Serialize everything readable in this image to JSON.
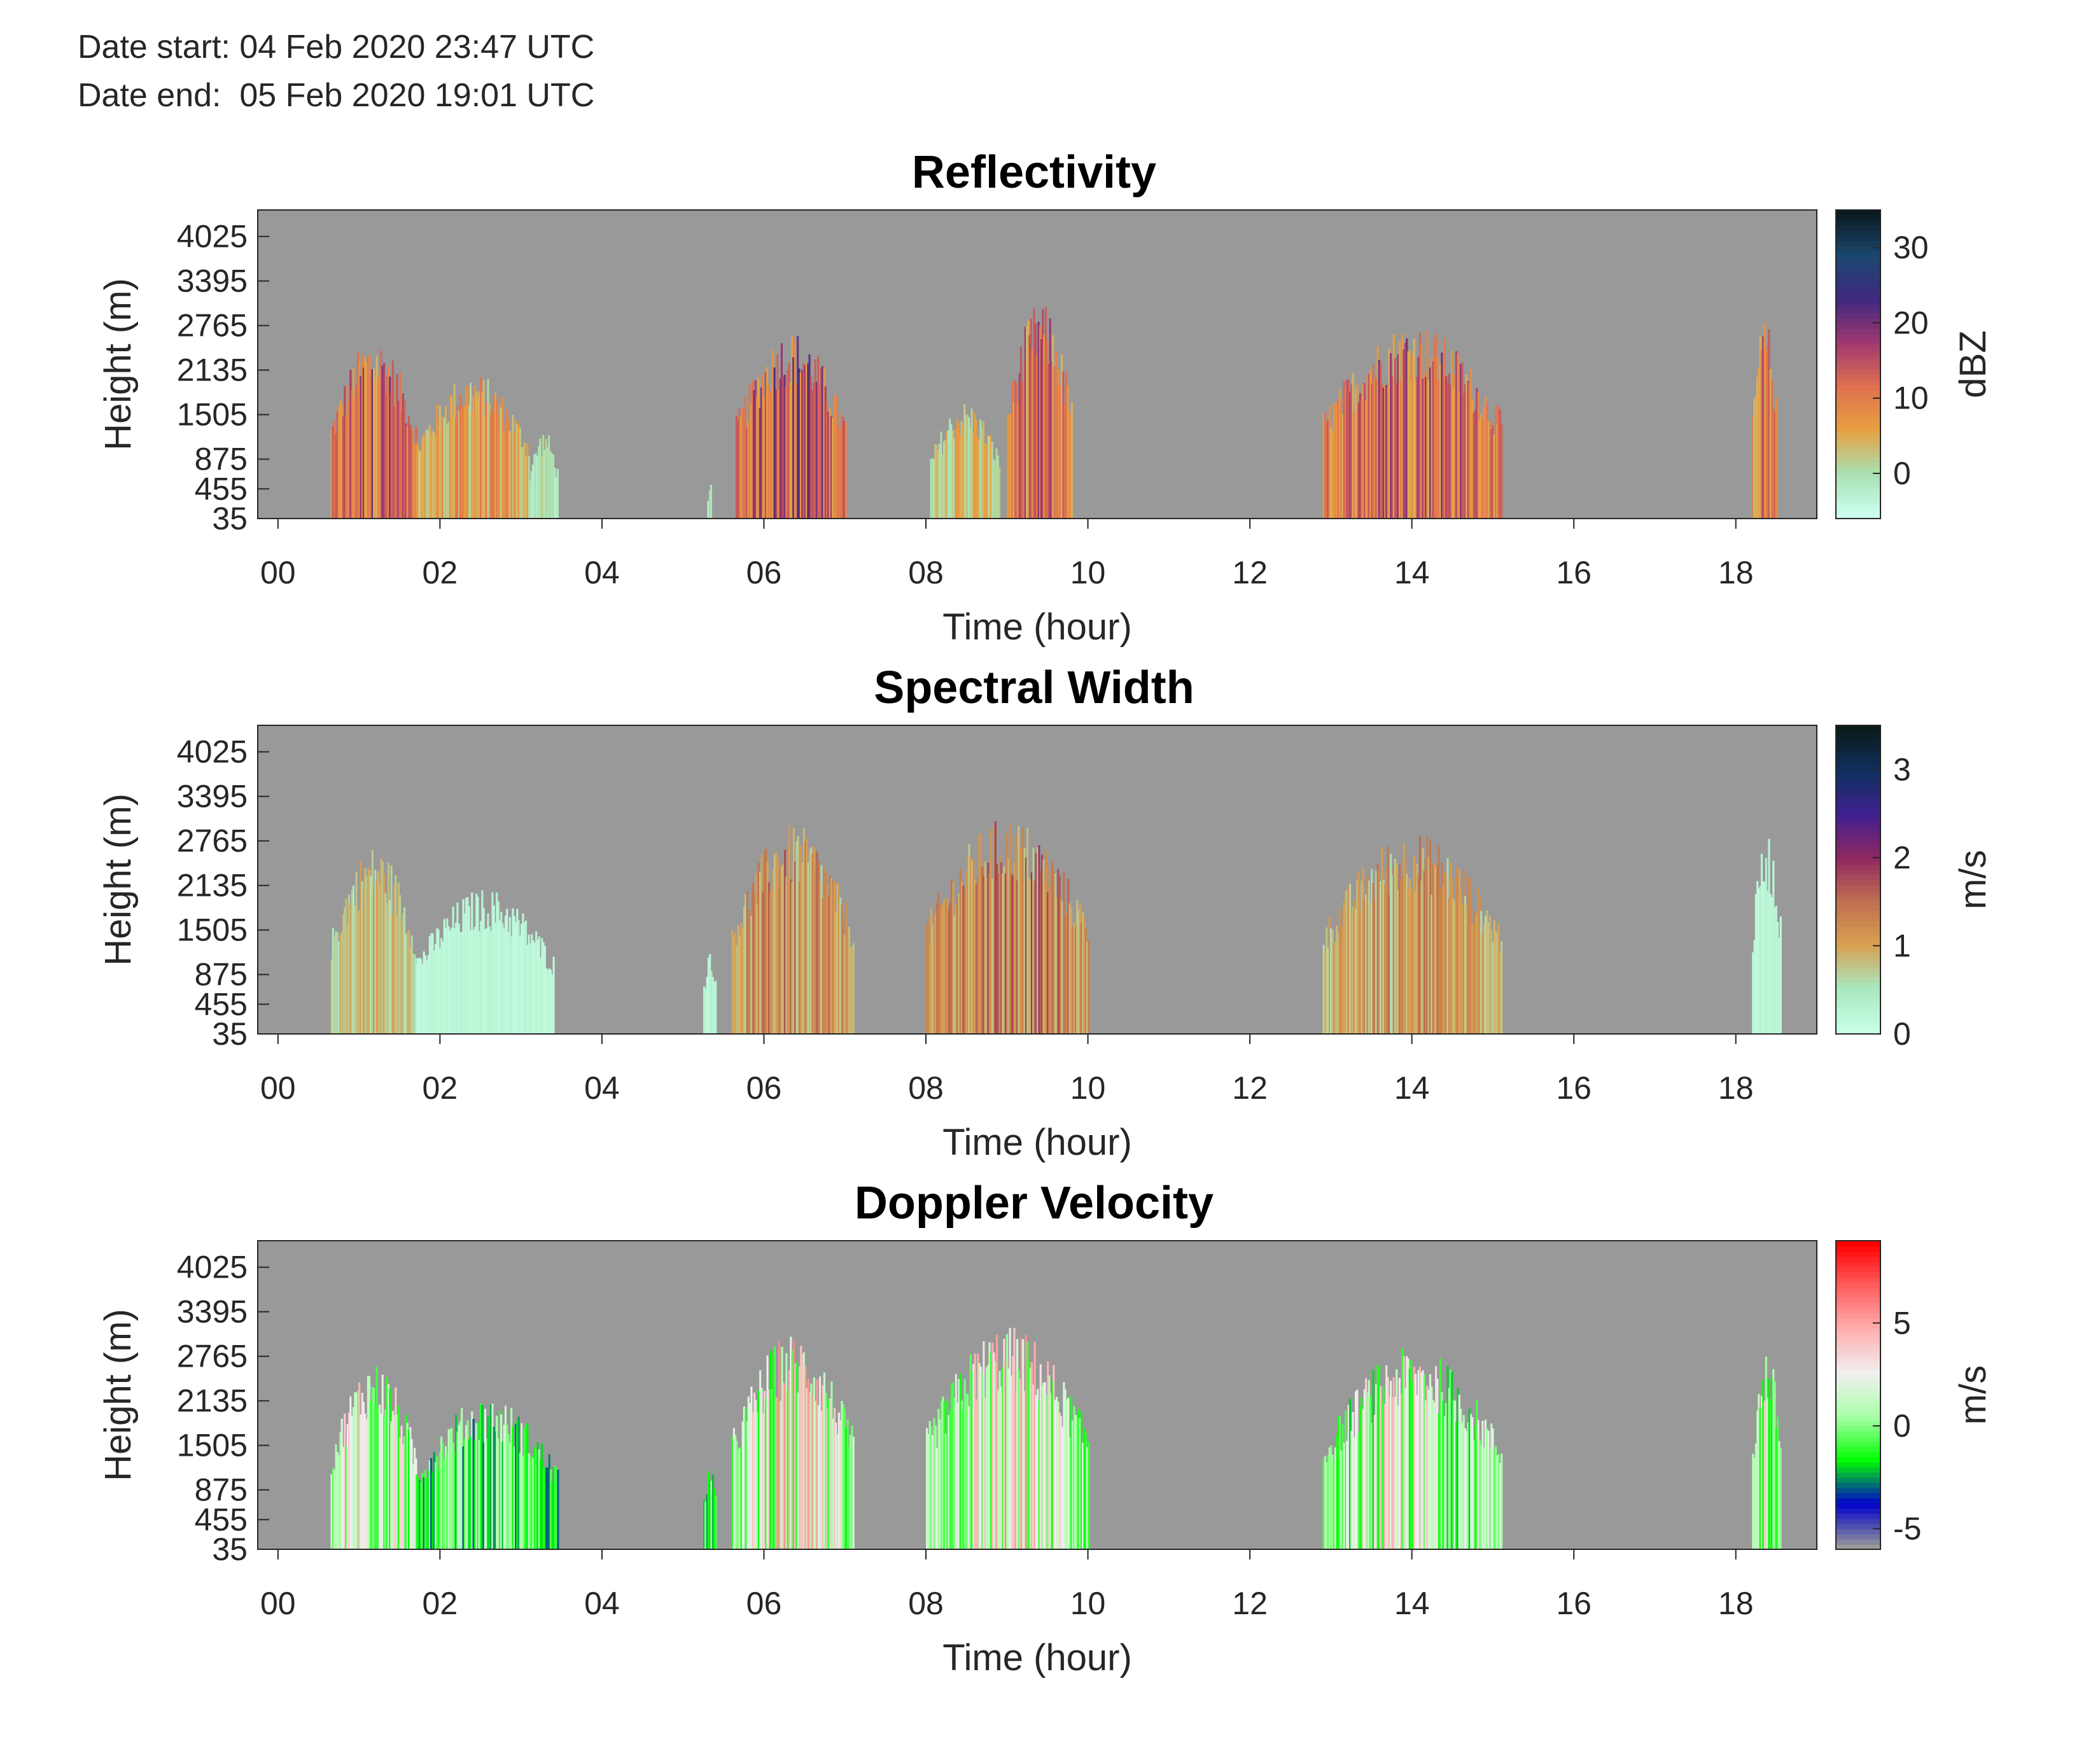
{
  "header": {
    "date_start": "Date start: 04 Feb 2020 23:47 UTC",
    "date_end": "Date end:  05 Feb 2020 19:01 UTC"
  },
  "colors": {
    "background": "#999999",
    "reflectivity_cmap": [
      "#ccfff0",
      "#a8e0b0",
      "#e8a040",
      "#e07050",
      "#a03870",
      "#402880",
      "#1a4870",
      "#0a1a20"
    ],
    "width_cmap": [
      "#c8ffe6",
      "#a8e8c0",
      "#d8a050",
      "#c07050",
      "#902860",
      "#402090",
      "#103060",
      "#0a1a18"
    ],
    "velocity_cmap": [
      "#999999",
      "#0000cc",
      "#00ff00",
      "#a8ffa8",
      "#f0f0f0",
      "#ffb0b0",
      "#ff6060",
      "#ff0000"
    ]
  },
  "chart_data": [
    {
      "type": "heatmap",
      "title": "Reflectivity",
      "xlabel": "Time (hour)",
      "ylabel": "Height (m)",
      "xticks": [
        "00",
        "02",
        "04",
        "06",
        "08",
        "10",
        "12",
        "14",
        "16",
        "18"
      ],
      "yticks": [
        "35",
        "455",
        "875",
        "1505",
        "2135",
        "2765",
        "3395",
        "4025"
      ],
      "xlim": [
        -0.25,
        19.0
      ],
      "ylim": [
        35,
        4400
      ],
      "colorbar": {
        "label": "dBZ",
        "ticks": [
          "0",
          "10",
          "20",
          "30"
        ],
        "clim": [
          -6,
          35
        ]
      },
      "echoes": [
        {
          "t0": 0.65,
          "t1": 1.7,
          "top": 2600,
          "max": 22
        },
        {
          "t0": 1.7,
          "t1": 3.1,
          "top": 2100,
          "max": 12
        },
        {
          "t0": 3.1,
          "t1": 3.45,
          "top": 1300,
          "max": 2
        },
        {
          "t0": 5.3,
          "t1": 5.35,
          "top": 600,
          "max": 1
        },
        {
          "t0": 5.65,
          "t1": 7.0,
          "top": 2700,
          "max": 25
        },
        {
          "t0": 8.05,
          "t1": 8.9,
          "top": 1700,
          "max": 8
        },
        {
          "t0": 9.0,
          "t1": 9.8,
          "top": 3100,
          "max": 20
        },
        {
          "t0": 12.9,
          "t1": 15.1,
          "top": 2800,
          "max": 22
        },
        {
          "t0": 18.2,
          "t1": 18.5,
          "top": 2900,
          "max": 18
        }
      ]
    },
    {
      "type": "heatmap",
      "title": "Spectral Width",
      "xlabel": "Time (hour)",
      "ylabel": "Height (m)",
      "xticks": [
        "00",
        "02",
        "04",
        "06",
        "08",
        "10",
        "12",
        "14",
        "16",
        "18"
      ],
      "yticks": [
        "35",
        "455",
        "875",
        "1505",
        "2135",
        "2765",
        "3395",
        "4025"
      ],
      "xlim": [
        -0.25,
        19.0
      ],
      "ylim": [
        35,
        4400
      ],
      "colorbar": {
        "label": "m/s",
        "ticks": [
          "0",
          "1",
          "2",
          "3"
        ],
        "clim": [
          0,
          3.5
        ]
      },
      "echoes": [
        {
          "t0": 0.65,
          "t1": 1.7,
          "top": 2700,
          "max": 1.2
        },
        {
          "t0": 1.7,
          "t1": 3.4,
          "top": 2100,
          "max": 0.3
        },
        {
          "t0": 5.25,
          "t1": 5.4,
          "top": 1300,
          "max": 0.4
        },
        {
          "t0": 5.6,
          "t1": 7.1,
          "top": 3000,
          "max": 1.8
        },
        {
          "t0": 8.0,
          "t1": 10.0,
          "top": 3100,
          "max": 2.0
        },
        {
          "t0": 12.9,
          "t1": 15.1,
          "top": 2900,
          "max": 1.6
        },
        {
          "t0": 18.2,
          "t1": 18.55,
          "top": 2900,
          "max": 0.3
        }
      ]
    },
    {
      "type": "heatmap",
      "title": "Doppler Velocity",
      "xlabel": "Time (hour)",
      "ylabel": "Height (m)",
      "xticks": [
        "00",
        "02",
        "04",
        "06",
        "08",
        "10",
        "12",
        "14",
        "16",
        "18"
      ],
      "yticks": [
        "35",
        "455",
        "875",
        "1505",
        "2135",
        "2765",
        "3395",
        "4025"
      ],
      "xlim": [
        -0.25,
        19.0
      ],
      "ylim": [
        35,
        4400
      ],
      "colorbar": {
        "label": "m/s",
        "ticks": [
          "5",
          "0",
          "-5"
        ],
        "clim": [
          -6,
          9
        ]
      },
      "echoes": [
        {
          "t0": 0.65,
          "t1": 1.7,
          "top": 2700,
          "max": 6
        },
        {
          "t0": 1.7,
          "t1": 3.45,
          "top": 2200,
          "max": 2
        },
        {
          "t0": 5.25,
          "t1": 5.4,
          "top": 1300,
          "max": 4
        },
        {
          "t0": 5.6,
          "t1": 7.1,
          "top": 3100,
          "max": 6
        },
        {
          "t0": 8.0,
          "t1": 10.0,
          "top": 3200,
          "max": 6
        },
        {
          "t0": 12.9,
          "t1": 15.1,
          "top": 2900,
          "max": 5
        },
        {
          "t0": 18.2,
          "t1": 18.55,
          "top": 2900,
          "max": 5
        }
      ]
    }
  ]
}
